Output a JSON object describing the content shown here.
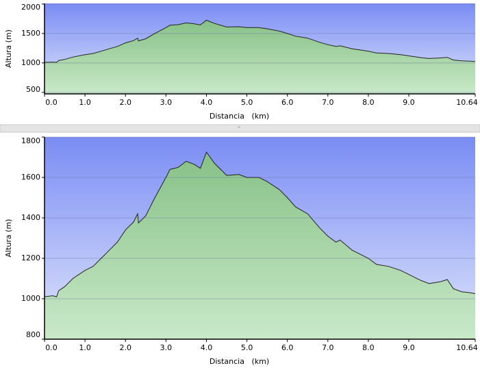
{
  "chart_data": [
    {
      "type": "area",
      "xlabel": "Distancia   (km)",
      "ylabel": "Altura (m)",
      "grid": true,
      "xlim": [
        0,
        10.64
      ],
      "ylim": [
        475,
        2010
      ],
      "xticks": [
        {
          "value": 0,
          "label": "0.0"
        },
        {
          "value": 1,
          "label": "1.0"
        },
        {
          "value": 2,
          "label": "2.0"
        },
        {
          "value": 3,
          "label": "3.0"
        },
        {
          "value": 4,
          "label": "4.0"
        },
        {
          "value": 5,
          "label": "5.0"
        },
        {
          "value": 6,
          "label": "6.0"
        },
        {
          "value": 7,
          "label": "7.0"
        },
        {
          "value": 8,
          "label": "8.0"
        },
        {
          "value": 9,
          "label": "9.0"
        },
        10.64
      ],
      "yticks": [
        500,
        1000,
        1500,
        2000
      ],
      "x": [
        0,
        0.2,
        0.3,
        0.35,
        0.5,
        0.7,
        1.0,
        1.2,
        1.4,
        1.6,
        1.8,
        2.0,
        2.2,
        2.3,
        2.32,
        2.5,
        2.7,
        3.0,
        3.1,
        3.3,
        3.5,
        3.7,
        3.85,
        4.0,
        4.2,
        4.5,
        4.8,
        5.0,
        5.3,
        5.5,
        5.8,
        6.0,
        6.2,
        6.5,
        6.8,
        7.0,
        7.2,
        7.3,
        7.6,
        7.9,
        8.0,
        8.2,
        8.5,
        8.8,
        9.0,
        9.3,
        9.5,
        9.8,
        9.95,
        10.1,
        10.3,
        10.5,
        10.64
      ],
      "values": [
        1010,
        1015,
        1010,
        1040,
        1060,
        1100,
        1140,
        1160,
        1200,
        1240,
        1280,
        1340,
        1380,
        1420,
        1375,
        1410,
        1490,
        1600,
        1640,
        1650,
        1680,
        1665,
        1645,
        1725,
        1670,
        1610,
        1615,
        1600,
        1600,
        1580,
        1540,
        1500,
        1455,
        1420,
        1350,
        1310,
        1280,
        1290,
        1240,
        1210,
        1200,
        1170,
        1160,
        1140,
        1120,
        1090,
        1075,
        1085,
        1095,
        1050,
        1035,
        1030,
        1025
      ]
    },
    {
      "type": "area",
      "xlabel": "Distancia   (km)",
      "ylabel": "Altura (m)",
      "grid": true,
      "xlim": [
        0,
        10.64
      ],
      "ylim": [
        800,
        1800
      ],
      "xticks": [
        {
          "value": 0,
          "label": "0.0"
        },
        {
          "value": 1,
          "label": "1.0"
        },
        {
          "value": 2,
          "label": "2.0"
        },
        {
          "value": 3,
          "label": "3.0"
        },
        {
          "value": 4,
          "label": "4.0"
        },
        {
          "value": 5,
          "label": "5.0"
        },
        {
          "value": 6,
          "label": "6.0"
        },
        {
          "value": 7,
          "label": "7.0"
        },
        {
          "value": 8,
          "label": "8.0"
        },
        {
          "value": 9,
          "label": "9.0"
        },
        10.64
      ],
      "yticks": [
        800,
        1000,
        1200,
        1400,
        1600,
        1800
      ],
      "x": [
        0,
        0.2,
        0.3,
        0.35,
        0.5,
        0.7,
        1.0,
        1.2,
        1.4,
        1.6,
        1.8,
        2.0,
        2.2,
        2.3,
        2.32,
        2.5,
        2.7,
        3.0,
        3.1,
        3.3,
        3.5,
        3.7,
        3.85,
        4.0,
        4.2,
        4.5,
        4.8,
        5.0,
        5.3,
        5.5,
        5.8,
        6.0,
        6.2,
        6.5,
        6.8,
        7.0,
        7.2,
        7.3,
        7.6,
        7.9,
        8.0,
        8.2,
        8.5,
        8.8,
        9.0,
        9.3,
        9.5,
        9.8,
        9.95,
        10.1,
        10.3,
        10.5,
        10.64
      ],
      "values": [
        1010,
        1015,
        1010,
        1040,
        1060,
        1100,
        1140,
        1160,
        1200,
        1240,
        1280,
        1340,
        1380,
        1420,
        1375,
        1410,
        1490,
        1600,
        1640,
        1650,
        1680,
        1665,
        1645,
        1725,
        1670,
        1610,
        1615,
        1600,
        1600,
        1580,
        1540,
        1500,
        1455,
        1420,
        1350,
        1310,
        1280,
        1290,
        1240,
        1210,
        1200,
        1170,
        1160,
        1140,
        1120,
        1090,
        1075,
        1085,
        1095,
        1050,
        1035,
        1030,
        1025
      ]
    }
  ]
}
